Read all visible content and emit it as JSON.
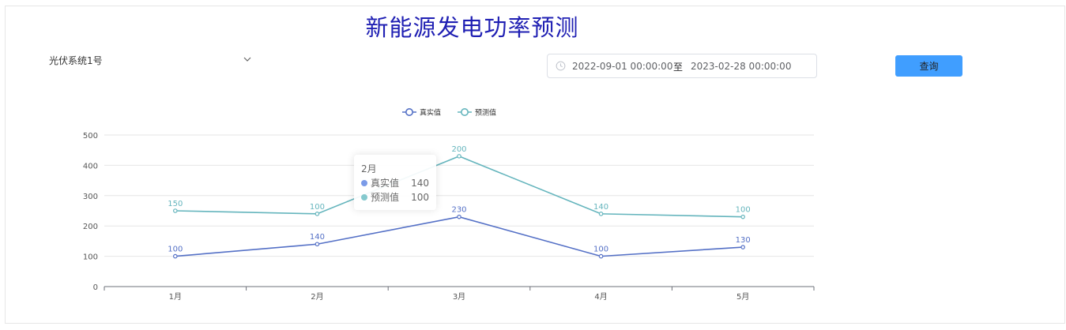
{
  "title": "新能源发电功率预测",
  "filters": {
    "system_select": {
      "value": "光伏系统1号"
    },
    "date_range": {
      "start": "2022-09-01 00:00:00",
      "separator": "至",
      "end": "2023-02-28 00:00:00"
    },
    "query_button": "查询"
  },
  "colors": {
    "real": "#5470c6",
    "forecast": "#65b5bd"
  },
  "chart_data": {
    "type": "line",
    "title": "",
    "xlabel": "",
    "ylabel": "",
    "categories": [
      "1月",
      "2月",
      "3月",
      "4月",
      "5月"
    ],
    "ylim": [
      0,
      500
    ],
    "yticks": [
      0,
      100,
      200,
      300,
      400,
      500
    ],
    "grid": true,
    "legend_position": "top-center",
    "series": [
      {
        "name": "真实值",
        "plotted": [
          100,
          140,
          230,
          100,
          130
        ],
        "labels": [
          "100",
          "140",
          "230",
          "100",
          "130"
        ]
      },
      {
        "name": "预测值",
        "plotted": [
          250,
          240,
          430,
          240,
          230
        ],
        "labels": [
          "150",
          "100",
          "200",
          "140",
          "100"
        ]
      }
    ]
  },
  "tooltip": {
    "category": "2月",
    "rows": [
      {
        "name": "真实值",
        "value": "140"
      },
      {
        "name": "预测值",
        "value": "100"
      }
    ]
  }
}
